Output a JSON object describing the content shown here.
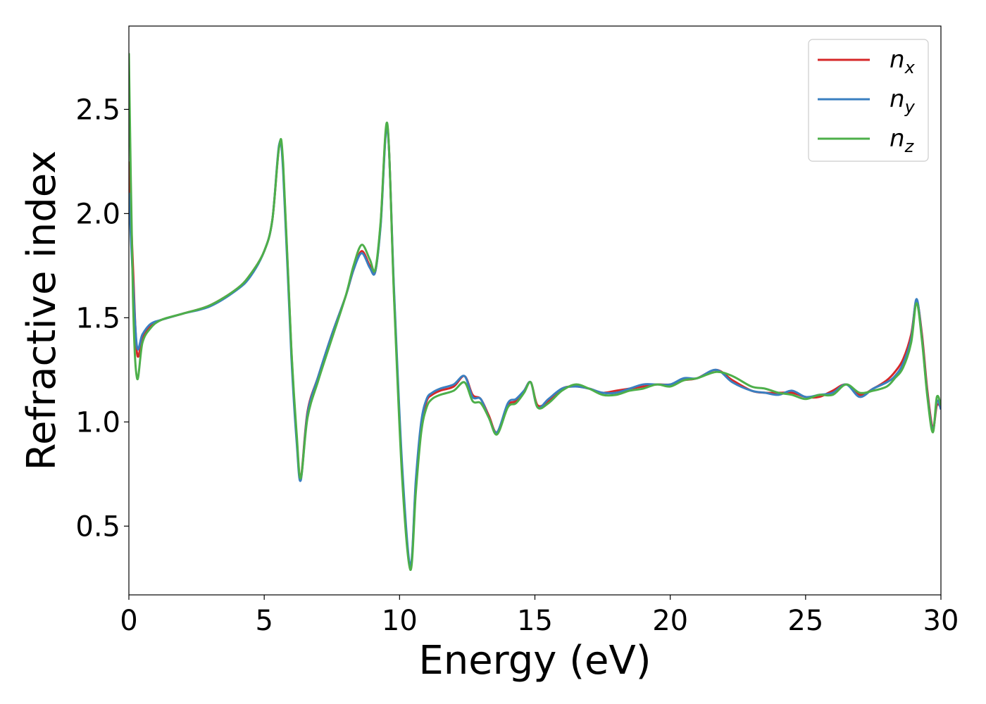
{
  "chart_data": {
    "type": "line",
    "title": "",
    "xlabel": "Energy (eV)",
    "ylabel": "Refractive index",
    "xlim": [
      0,
      30
    ],
    "ylim": [
      0.17,
      2.9
    ],
    "xticks": [
      0,
      5,
      10,
      15,
      20,
      25,
      30
    ],
    "xtick_labels": [
      "0",
      "5",
      "10",
      "15",
      "20",
      "25",
      "30"
    ],
    "yticks": [
      0.5,
      1.0,
      1.5,
      2.0,
      2.5
    ],
    "ytick_labels": [
      "0.5",
      "1.0",
      "1.5",
      "2.0",
      "2.5"
    ],
    "grid": false,
    "legend_position": "top-right",
    "colors": {
      "nx": "#d62728",
      "ny": "#3a7fc0",
      "nz": "#4daf4a"
    },
    "x": [
      0,
      0.15,
      0.3,
      0.5,
      0.8,
      1.2,
      2,
      3,
      4,
      4.5,
      5,
      5.3,
      5.55,
      5.7,
      6.0,
      6.2,
      6.35,
      6.6,
      7.0,
      7.5,
      8.0,
      8.3,
      8.6,
      8.9,
      9.1,
      9.3,
      9.55,
      9.8,
      10.1,
      10.4,
      10.6,
      10.8,
      11.0,
      11.2,
      11.5,
      12.0,
      12.4,
      12.7,
      13.0,
      13.3,
      13.6,
      14.0,
      14.3,
      14.6,
      14.85,
      15.1,
      15.5,
      16.0,
      16.5,
      17.0,
      17.5,
      18.0,
      18.5,
      19.0,
      19.5,
      20.0,
      20.5,
      21.0,
      21.7,
      22.3,
      23.0,
      23.5,
      24.0,
      24.5,
      25.0,
      25.5,
      26.0,
      26.5,
      27.0,
      27.5,
      28.0,
      28.3,
      28.6,
      28.9,
      29.1,
      29.3,
      29.5,
      29.7,
      29.85,
      30.0
    ],
    "series": [
      {
        "name": "n_x",
        "label": "n",
        "subscript": "x",
        "values": [
          2.25,
          1.75,
          1.33,
          1.4,
          1.46,
          1.49,
          1.52,
          1.56,
          1.64,
          1.71,
          1.82,
          1.97,
          2.32,
          2.22,
          1.35,
          0.92,
          0.73,
          1.05,
          1.22,
          1.42,
          1.6,
          1.73,
          1.82,
          1.75,
          1.72,
          1.95,
          2.42,
          1.6,
          0.75,
          0.3,
          0.7,
          0.98,
          1.1,
          1.13,
          1.15,
          1.17,
          1.22,
          1.13,
          1.11,
          1.03,
          0.95,
          1.08,
          1.1,
          1.15,
          1.19,
          1.08,
          1.1,
          1.16,
          1.17,
          1.16,
          1.14,
          1.15,
          1.16,
          1.17,
          1.18,
          1.18,
          1.2,
          1.21,
          1.25,
          1.2,
          1.15,
          1.14,
          1.14,
          1.14,
          1.12,
          1.12,
          1.15,
          1.18,
          1.13,
          1.16,
          1.2,
          1.24,
          1.3,
          1.42,
          1.58,
          1.42,
          1.15,
          0.97,
          1.08,
          1.07
        ]
      },
      {
        "name": "n_y",
        "label": "n",
        "subscript": "y",
        "values": [
          2.1,
          1.68,
          1.36,
          1.42,
          1.47,
          1.49,
          1.52,
          1.555,
          1.635,
          1.7,
          1.82,
          1.97,
          2.33,
          2.2,
          1.32,
          0.9,
          0.72,
          1.04,
          1.22,
          1.42,
          1.6,
          1.73,
          1.81,
          1.74,
          1.72,
          1.94,
          2.41,
          1.62,
          0.78,
          0.31,
          0.72,
          1.0,
          1.11,
          1.14,
          1.16,
          1.18,
          1.22,
          1.12,
          1.11,
          1.02,
          0.95,
          1.09,
          1.11,
          1.15,
          1.19,
          1.07,
          1.11,
          1.16,
          1.17,
          1.16,
          1.14,
          1.14,
          1.16,
          1.18,
          1.18,
          1.18,
          1.21,
          1.21,
          1.25,
          1.19,
          1.15,
          1.14,
          1.13,
          1.15,
          1.12,
          1.13,
          1.14,
          1.18,
          1.12,
          1.16,
          1.19,
          1.22,
          1.28,
          1.4,
          1.59,
          1.4,
          1.13,
          0.96,
          1.1,
          1.06
        ]
      },
      {
        "name": "n_z",
        "label": "n",
        "subscript": "z",
        "values": [
          2.77,
          1.6,
          1.21,
          1.38,
          1.45,
          1.49,
          1.52,
          1.56,
          1.64,
          1.71,
          1.82,
          1.97,
          2.32,
          2.24,
          1.36,
          0.94,
          0.73,
          1.02,
          1.2,
          1.4,
          1.6,
          1.75,
          1.85,
          1.78,
          1.73,
          1.96,
          2.43,
          1.58,
          0.72,
          0.29,
          0.66,
          0.95,
          1.07,
          1.11,
          1.13,
          1.15,
          1.19,
          1.1,
          1.09,
          1.02,
          0.94,
          1.07,
          1.09,
          1.14,
          1.19,
          1.07,
          1.09,
          1.15,
          1.18,
          1.16,
          1.13,
          1.13,
          1.15,
          1.16,
          1.18,
          1.17,
          1.2,
          1.21,
          1.24,
          1.22,
          1.17,
          1.16,
          1.14,
          1.13,
          1.11,
          1.13,
          1.13,
          1.18,
          1.14,
          1.15,
          1.17,
          1.21,
          1.26,
          1.38,
          1.57,
          1.39,
          1.12,
          0.95,
          1.12,
          1.08
        ]
      }
    ]
  }
}
